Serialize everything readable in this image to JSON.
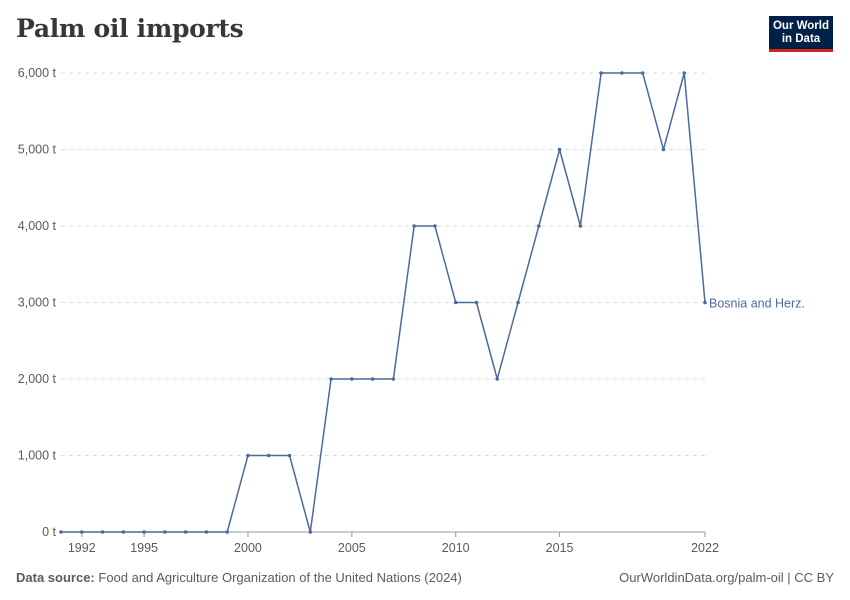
{
  "header": {
    "title": "Palm oil imports",
    "logo_line1": "Our World",
    "logo_line2": "in Data"
  },
  "footer": {
    "source_label": "Data source:",
    "source_text": "Food and Agriculture Organization of the United Nations (2024)",
    "right_text": "OurWorldinData.org/palm-oil | CC BY"
  },
  "colors": {
    "series": "#4c6a9c",
    "grid": "#dddddd",
    "axis_text": "#5b5b5b"
  },
  "chart_data": {
    "type": "line",
    "title": "Palm oil imports",
    "xlim": [
      1991,
      2022
    ],
    "ylim": [
      0,
      6000
    ],
    "y_ticks": [
      0,
      1000,
      2000,
      3000,
      4000,
      5000,
      6000
    ],
    "y_tick_labels": [
      "0 t",
      "1,000 t",
      "2,000 t",
      "3,000 t",
      "4,000 t",
      "5,000 t",
      "6,000 t"
    ],
    "x_ticks": [
      1992,
      1995,
      2000,
      2005,
      2010,
      2015,
      2022
    ],
    "x_tick_labels": [
      "1992",
      "1995",
      "2000",
      "2005",
      "2010",
      "2015",
      "2022"
    ],
    "grid": "horizontal dashed",
    "series": [
      {
        "name": "Bosnia and Herz.",
        "x": [
          1991,
          1992,
          1993,
          1994,
          1995,
          1996,
          1997,
          1998,
          1999,
          2000,
          2001,
          2002,
          2003,
          2004,
          2005,
          2006,
          2007,
          2008,
          2009,
          2010,
          2011,
          2012,
          2013,
          2014,
          2015,
          2016,
          2017,
          2018,
          2019,
          2020,
          2021,
          2022
        ],
        "y": [
          0,
          0,
          0,
          0,
          0,
          0,
          0,
          0,
          0,
          1000,
          1000,
          1000,
          0,
          2000,
          2000,
          2000,
          2000,
          4000,
          4000,
          3000,
          3000,
          2000,
          3000,
          4000,
          5000,
          4000,
          6000,
          6000,
          6000,
          5000,
          6000,
          3000
        ]
      }
    ]
  }
}
